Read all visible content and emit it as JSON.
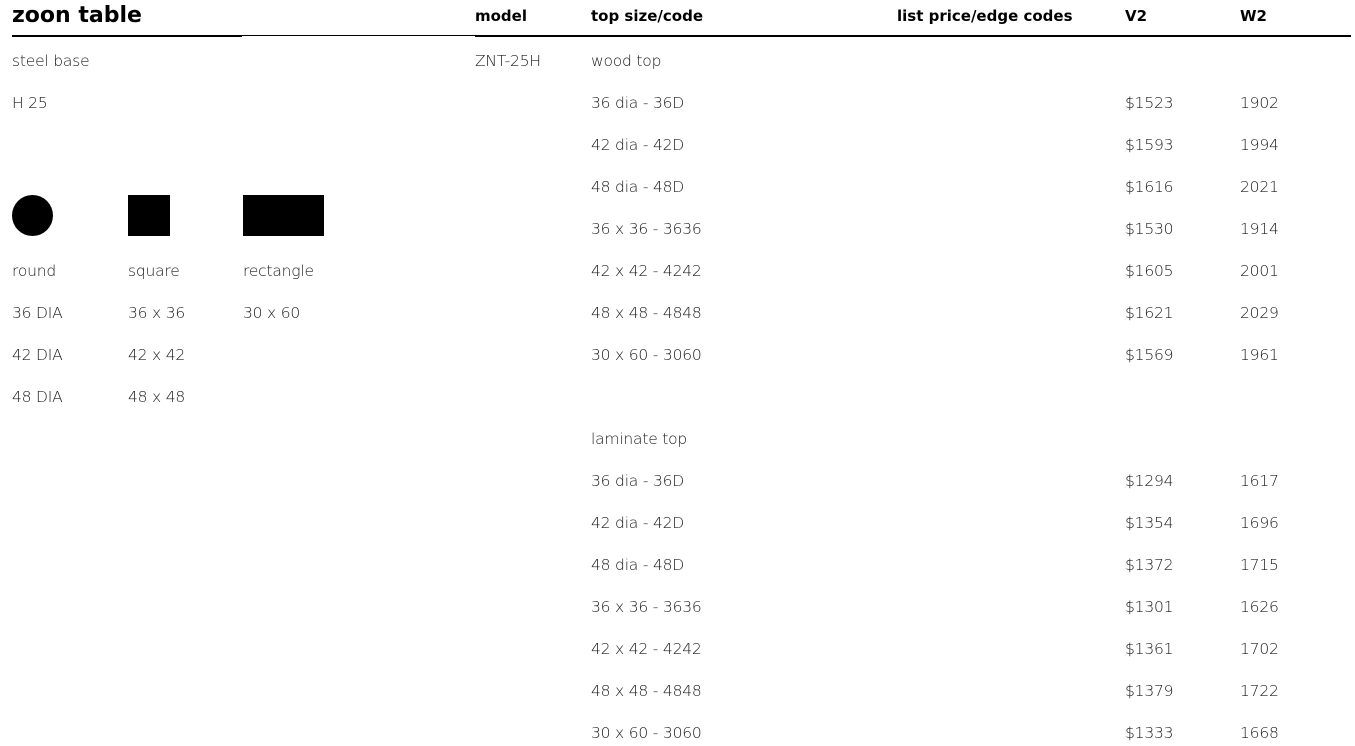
{
  "title": "zoon table",
  "headers": {
    "model": "model",
    "top_size_code": "top size/code",
    "list_price_edge_codes": "list price/edge codes",
    "v2": "V2",
    "w2": "W2"
  },
  "left": {
    "base": "steel base",
    "height": "H 25",
    "shapes": [
      {
        "name": "round",
        "sizes": [
          "36 DIA",
          "42 DIA",
          "48 DIA"
        ]
      },
      {
        "name": "square",
        "sizes": [
          "36 x 36",
          "42 x 42",
          "48 x 48"
        ]
      },
      {
        "name": "rectangle",
        "sizes": [
          "30 x 60"
        ]
      }
    ]
  },
  "model": "ZNT-25H",
  "groups": [
    {
      "label": "wood top",
      "rows": [
        {
          "size": "36 dia - 36D",
          "v2": "$1523",
          "w2": "1902"
        },
        {
          "size": "42 dia - 42D",
          "v2": "$1593",
          "w2": "1994"
        },
        {
          "size": "48 dia - 48D",
          "v2": "$1616",
          "w2": "2021"
        },
        {
          "size": "36 x 36 - 3636",
          "v2": "$1530",
          "w2": "1914"
        },
        {
          "size": "42 x 42 - 4242",
          "v2": "$1605",
          "w2": "2001"
        },
        {
          "size": "48 x 48 - 4848",
          "v2": "$1621",
          "w2": "2029"
        },
        {
          "size": "30 x 60 - 3060",
          "v2": "$1569",
          "w2": "1961"
        }
      ]
    },
    {
      "label": "laminate top",
      "rows": [
        {
          "size": "36 dia - 36D",
          "v2": "$1294",
          "w2": "1617"
        },
        {
          "size": "42 dia - 42D",
          "v2": "$1354",
          "w2": "1696"
        },
        {
          "size": "48 dia - 48D",
          "v2": "$1372",
          "w2": "1715"
        },
        {
          "size": "36 x 36 - 3636",
          "v2": "$1301",
          "w2": "1626"
        },
        {
          "size": "42 x 42 - 4242",
          "v2": "$1361",
          "w2": "1702"
        },
        {
          "size": "48 x 48 - 4848",
          "v2": "$1379",
          "w2": "1722"
        },
        {
          "size": "30 x 60 - 3060",
          "v2": "$1333",
          "w2": "1668"
        }
      ]
    }
  ]
}
